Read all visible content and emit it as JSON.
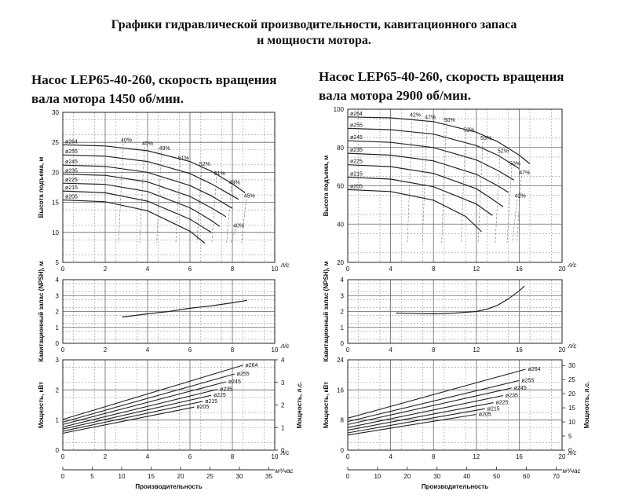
{
  "page": {
    "title_line1": "Графики гидравлической производительности, кавитационного запаса",
    "title_line2": "и мощности мотора."
  },
  "chart_data": [
    {
      "id": "left",
      "type": "line",
      "title": "Насос LEP65-40-260, скорость вращения\nвала мотора 1450 об/мин.",
      "x_unit": "л/с",
      "x2_unit": "м³/час",
      "xlabel": "Производительность",
      "x_lim": [
        0,
        10
      ],
      "x_ticks": [
        0,
        2,
        4,
        6,
        8,
        10
      ],
      "x2_lim": [
        0,
        36
      ],
      "x2_ticks": [
        0,
        5,
        10,
        15,
        20,
        25,
        30,
        35
      ],
      "grid": true,
      "head": {
        "ylabel": "Высота подъема, м",
        "ylim": [
          5,
          30
        ],
        "yticks": [
          5,
          10,
          15,
          20,
          25,
          30
        ],
        "series": [
          {
            "name": "ø264",
            "points": [
              [
                0,
                24.6
              ],
              [
                2,
                24.4
              ],
              [
                4,
                23.6
              ],
              [
                6,
                21.8
              ],
              [
                7,
                20.2
              ],
              [
                8,
                18.1
              ],
              [
                8.6,
                16.6
              ]
            ]
          },
          {
            "name": "ø255",
            "points": [
              [
                0,
                22.9
              ],
              [
                2,
                22.7
              ],
              [
                4,
                21.8
              ],
              [
                6,
                19.8
              ],
              [
                7,
                18.1
              ],
              [
                8,
                16.1
              ],
              [
                8.3,
                15.5
              ]
            ]
          },
          {
            "name": "ø245",
            "points": [
              [
                0,
                21.2
              ],
              [
                2,
                21.0
              ],
              [
                4,
                20.0
              ],
              [
                6,
                17.8
              ],
              [
                7,
                16.1
              ],
              [
                8,
                14.0
              ]
            ]
          },
          {
            "name": "ø235",
            "points": [
              [
                0,
                19.7
              ],
              [
                2,
                19.5
              ],
              [
                4,
                18.4
              ],
              [
                6,
                16.0
              ],
              [
                7,
                14.1
              ],
              [
                7.7,
                12.6
              ]
            ]
          },
          {
            "name": "ø225",
            "points": [
              [
                0,
                18.2
              ],
              [
                2,
                18.0
              ],
              [
                4,
                16.8
              ],
              [
                6,
                14.1
              ],
              [
                7,
                12.0
              ],
              [
                7.4,
                11.0
              ]
            ]
          },
          {
            "name": "ø215",
            "points": [
              [
                0,
                16.9
              ],
              [
                2,
                16.6
              ],
              [
                4,
                15.2
              ],
              [
                6,
                12.2
              ],
              [
                7.0,
                10.0
              ]
            ]
          },
          {
            "name": "ø205",
            "points": [
              [
                0,
                15.4
              ],
              [
                2,
                15.1
              ],
              [
                4,
                13.6
              ],
              [
                6,
                10.2
              ],
              [
                6.7,
                8.2
              ]
            ]
          }
        ],
        "efficiency_labels": [
          {
            "text": "40%",
            "x": 3.0,
            "y": 25.1
          },
          {
            "text": "45%",
            "x": 4.0,
            "y": 24.5
          },
          {
            "text": "49%",
            "x": 4.8,
            "y": 23.7
          },
          {
            "text": "51%",
            "x": 5.7,
            "y": 22.1
          },
          {
            "text": "52%",
            "x": 6.7,
            "y": 21.1
          },
          {
            "text": "51%",
            "x": 7.4,
            "y": 19.5
          },
          {
            "text": "49%",
            "x": 8.1,
            "y": 18.0
          },
          {
            "text": "45%",
            "x": 8.8,
            "y": 15.8
          },
          {
            "text": "40%",
            "x": 8.3,
            "y": 10.8
          }
        ]
      },
      "npsh": {
        "ylabel": "Кавитационный запас (NPSH), м",
        "ylim": [
          0,
          4
        ],
        "yticks": [
          0,
          1,
          2,
          3,
          4
        ],
        "curve": [
          [
            2.8,
            1.65
          ],
          [
            4,
            1.85
          ],
          [
            5,
            2.0
          ],
          [
            6,
            2.2
          ],
          [
            7,
            2.35
          ],
          [
            8,
            2.55
          ],
          [
            8.7,
            2.7
          ]
        ]
      },
      "power": {
        "ylabel": "Мощность, кВт",
        "ylabel2": "Мощность, л.с.",
        "ylim": [
          0,
          3
        ],
        "yticks": [
          0,
          1,
          2,
          3
        ],
        "y2lim": [
          0,
          4
        ],
        "y2ticks": [
          0,
          1,
          2,
          3,
          4
        ],
        "series": [
          {
            "name": "ø264",
            "points": [
              [
                0,
                1.02
              ],
              [
                8.5,
                2.82
              ]
            ]
          },
          {
            "name": "ø255",
            "points": [
              [
                0,
                0.93
              ],
              [
                8.1,
                2.53
              ]
            ]
          },
          {
            "name": "ø245",
            "points": [
              [
                0,
                0.85
              ],
              [
                7.7,
                2.27
              ]
            ]
          },
          {
            "name": "ø235",
            "points": [
              [
                0,
                0.77
              ],
              [
                7.3,
                2.02
              ]
            ]
          },
          {
            "name": "ø225",
            "points": [
              [
                0,
                0.7
              ],
              [
                7.0,
                1.82
              ]
            ]
          },
          {
            "name": "ø215",
            "points": [
              [
                0,
                0.63
              ],
              [
                6.6,
                1.62
              ]
            ]
          },
          {
            "name": "ø205",
            "points": [
              [
                0,
                0.56
              ],
              [
                6.2,
                1.43
              ]
            ]
          }
        ]
      }
    },
    {
      "id": "right",
      "type": "line",
      "title": "Насос LEP65-40-260, скорость вращения\nвала мотора 2900 об/мин.",
      "x_unit": "л/с",
      "x2_unit": "м³/час",
      "xlabel": "Производительность",
      "x_lim": [
        0,
        20
      ],
      "x_ticks": [
        0,
        4,
        8,
        12,
        16,
        20
      ],
      "x2_lim": [
        0,
        72
      ],
      "x2_ticks": [
        0,
        10,
        20,
        30,
        40,
        50,
        60,
        70
      ],
      "grid": true,
      "head": {
        "ylabel": "Высота подъема, м",
        "ylim": [
          20,
          100
        ],
        "yticks": [
          20,
          40,
          60,
          80,
          100
        ],
        "series": [
          {
            "name": "ø264",
            "points": [
              [
                0,
                96
              ],
              [
                4,
                95.5
              ],
              [
                8,
                93.5
              ],
              [
                12,
                88
              ],
              [
                14,
                83
              ],
              [
                16,
                76
              ],
              [
                17,
                71.5
              ]
            ]
          },
          {
            "name": "ø255",
            "points": [
              [
                0,
                90
              ],
              [
                4,
                89.3
              ],
              [
                8,
                87
              ],
              [
                12,
                81
              ],
              [
                14,
                76
              ],
              [
                16,
                69
              ]
            ]
          },
          {
            "name": "ø245",
            "points": [
              [
                0,
                83.5
              ],
              [
                4,
                82.7
              ],
              [
                8,
                80
              ],
              [
                12,
                73.5
              ],
              [
                14,
                68
              ],
              [
                15.5,
                63
              ]
            ]
          },
          {
            "name": "ø235",
            "points": [
              [
                0,
                77
              ],
              [
                4,
                76
              ],
              [
                8,
                73
              ],
              [
                12,
                66
              ],
              [
                14,
                60
              ],
              [
                15,
                56.5
              ]
            ]
          },
          {
            "name": "ø225",
            "points": [
              [
                0,
                71
              ],
              [
                4,
                70
              ],
              [
                8,
                66.5
              ],
              [
                12,
                58.5
              ],
              [
                13.5,
                53
              ],
              [
                14.5,
                49
              ]
            ]
          },
          {
            "name": "ø215",
            "points": [
              [
                0,
                64.5
              ],
              [
                4,
                63.5
              ],
              [
                8,
                59.5
              ],
              [
                12,
                50.5
              ],
              [
                13.5,
                44.5
              ]
            ]
          },
          {
            "name": "ø205",
            "points": [
              [
                0,
                58
              ],
              [
                4,
                57
              ],
              [
                8,
                52.5
              ],
              [
                11,
                44
              ],
              [
                12.5,
                36
              ]
            ]
          }
        ],
        "efficiency_labels": [
          {
            "text": "42%",
            "x": 6.3,
            "y": 96.2
          },
          {
            "text": "47%",
            "x": 7.7,
            "y": 94.8
          },
          {
            "text": "50%",
            "x": 9.5,
            "y": 93.5
          },
          {
            "text": "52%",
            "x": 11.3,
            "y": 88.3
          },
          {
            "text": "53%",
            "x": 12.9,
            "y": 84.0
          },
          {
            "text": "52%",
            "x": 14.5,
            "y": 77.3
          },
          {
            "text": "50%",
            "x": 15.6,
            "y": 70.7
          },
          {
            "text": "47%",
            "x": 16.5,
            "y": 66.0
          },
          {
            "text": "42%",
            "x": 16.1,
            "y": 53.8
          }
        ]
      },
      "npsh": {
        "ylabel": "Кавитационный запас (NPSH), м",
        "ylim": [
          0,
          4
        ],
        "yticks": [
          0,
          1,
          2,
          3,
          4
        ],
        "curve": [
          [
            4.5,
            1.9
          ],
          [
            8,
            1.85
          ],
          [
            10,
            1.9
          ],
          [
            12,
            2.0
          ],
          [
            13,
            2.15
          ],
          [
            14,
            2.4
          ],
          [
            15,
            2.8
          ],
          [
            16,
            3.3
          ],
          [
            16.5,
            3.6
          ]
        ]
      },
      "power": {
        "ylabel": "Мощность, кВт",
        "ylabel2": "Мощность, л.с.",
        "ylim": [
          0,
          24
        ],
        "yticks": [
          0,
          8,
          16,
          24
        ],
        "y2lim": [
          0,
          32
        ],
        "y2ticks": [
          0,
          5,
          10,
          15,
          20,
          25,
          30
        ],
        "series": [
          {
            "name": "ø264",
            "points": [
              [
                0,
                8.5
              ],
              [
                16.6,
                21.5
              ]
            ]
          },
          {
            "name": "ø255",
            "points": [
              [
                0,
                7.6
              ],
              [
                16.0,
                18.5
              ]
            ]
          },
          {
            "name": "ø245",
            "points": [
              [
                0,
                6.8
              ],
              [
                15.3,
                16.5
              ]
            ]
          },
          {
            "name": "ø235",
            "points": [
              [
                0,
                6.0
              ],
              [
                14.5,
                14.5
              ]
            ]
          },
          {
            "name": "ø225",
            "points": [
              [
                0,
                5.3
              ],
              [
                13.6,
                12.6
              ]
            ]
          },
          {
            "name": "ø215",
            "points": [
              [
                0,
                4.6
              ],
              [
                12.8,
                11.0
              ]
            ]
          },
          {
            "name": "ø205",
            "points": [
              [
                0,
                4.0
              ],
              [
                12.0,
                9.5
              ]
            ]
          }
        ]
      }
    }
  ]
}
